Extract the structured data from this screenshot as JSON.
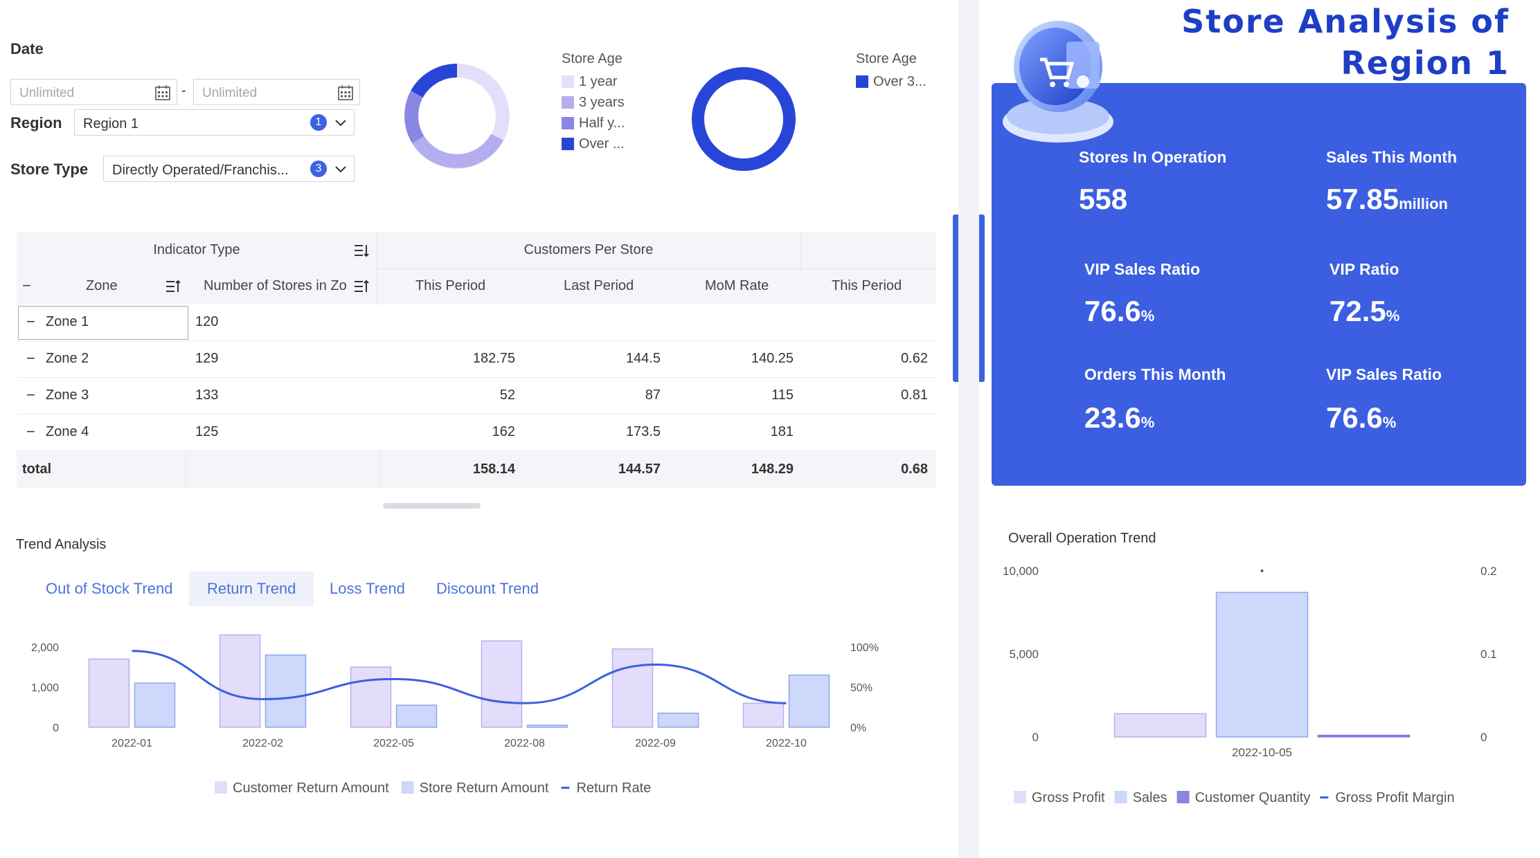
{
  "filters": {
    "date_label": "Date",
    "date_start_placeholder": "Unlimited",
    "date_end_placeholder": "Unlimited",
    "date_separator": "-",
    "region_label": "Region",
    "region_value": "Region 1",
    "region_count": "1",
    "store_type_label": "Store Type",
    "store_type_value": "Directly Operated/Franchis...",
    "store_type_count": "3"
  },
  "store_age_donut_1": {
    "legend_title": "Store Age",
    "items": [
      {
        "label": "1 year",
        "color": "#e3dffb"
      },
      {
        "label": "3 years",
        "color": "#b4aef0"
      },
      {
        "label": "Half y...",
        "color": "#8a86e4"
      },
      {
        "label": "Over ...",
        "color": "#2746d8"
      }
    ]
  },
  "store_age_donut_2": {
    "legend_title": "Store Age",
    "items": [
      {
        "label": "Over 3...",
        "color": "#2746d8"
      }
    ]
  },
  "table": {
    "header_indicator": "Indicator Type",
    "header_group": "Customers Per Store",
    "col_zone": "Zone",
    "col_stores": "Number of Stores in Zo",
    "col_this_period": "This Period",
    "col_last_period": "Last Period",
    "col_mom": "MoM Rate",
    "col_this_period_2": "This Period",
    "collapse_symbol": "−",
    "rows": [
      {
        "zone": "Zone 1",
        "stores": "120",
        "this": "",
        "last": "",
        "mom": "",
        "this2": ""
      },
      {
        "zone": "Zone 2",
        "stores": "129",
        "this": "182.75",
        "last": "144.5",
        "mom": "140.25",
        "this2": "0.62"
      },
      {
        "zone": "Zone 3",
        "stores": "133",
        "this": "52",
        "last": "87",
        "mom": "115",
        "this2": "0.81"
      },
      {
        "zone": "Zone 4",
        "stores": "125",
        "this": "162",
        "last": "173.5",
        "mom": "181",
        "this2": ""
      }
    ],
    "total": {
      "label": "total",
      "this": "158.14",
      "last": "144.57",
      "mom": "148.29",
      "this2": "0.68"
    }
  },
  "trend": {
    "section_title": "Trend Analysis",
    "tabs": [
      "Out of Stock Trend",
      "Return Trend",
      "Loss Trend",
      "Discount Trend"
    ],
    "active_tab": "Return Trend"
  },
  "chart_data": [
    {
      "type": "bar",
      "categories": [
        "2022-01",
        "2022-02",
        "2022-05",
        "2022-08",
        "2022-09",
        "2022-10"
      ],
      "series": [
        {
          "name": "Customer Return Amount",
          "values": [
            1700,
            2300,
            1500,
            2150,
            1950,
            600
          ],
          "color": "#e3dcfb"
        },
        {
          "name": "Store Return Amount",
          "values": [
            1100,
            1800,
            550,
            50,
            350,
            1300
          ],
          "color": "#cdd8fa"
        },
        {
          "name": "Return Rate",
          "values": [
            0.95,
            0.35,
            0.6,
            0.3,
            0.78,
            0.3
          ],
          "type": "line",
          "axis": "right",
          "color": "#3b5fe0"
        }
      ],
      "y_ticks": [
        "2,000",
        "1,000",
        "0"
      ],
      "y2_ticks": [
        "100%",
        "50%",
        "0%"
      ],
      "ylim": [
        0,
        2000
      ],
      "y2lim": [
        0,
        1
      ],
      "legend_position": "bottom"
    },
    {
      "type": "bar",
      "title": "Overall Operation Trend",
      "categories": [
        "2022-10-05"
      ],
      "series": [
        {
          "name": "Gross Profit",
          "values": [
            1400
          ],
          "color": "#e3dcfb"
        },
        {
          "name": "Sales",
          "values": [
            8700
          ],
          "color": "#cdd8fa"
        },
        {
          "name": "Customer Quantity",
          "values": [
            100
          ],
          "color": "#8a86e4"
        },
        {
          "name": "Gross Profit Margin",
          "values": [
            0.2
          ],
          "type": "line",
          "axis": "right",
          "color": "#3b5fe0"
        }
      ],
      "y_ticks": [
        "10,000",
        "5,000",
        "0"
      ],
      "y2_ticks": [
        "0.2",
        "0.1",
        "0"
      ],
      "ylim": [
        0,
        10000
      ],
      "y2lim": [
        0,
        0.2
      ],
      "legend_position": "bottom"
    }
  ],
  "right_panel": {
    "title_line1": "Store Analysis of",
    "title_line2": "Region 1",
    "kpis": [
      {
        "label": "Stores In Operation",
        "value": "558",
        "unit": ""
      },
      {
        "label": "Sales This Month",
        "value": "57.85",
        "unit": "million"
      },
      {
        "label": "VIP Sales Ratio",
        "value": "76.6",
        "unit": "%"
      },
      {
        "label": "VIP Ratio",
        "value": "72.5",
        "unit": "%"
      },
      {
        "label": "Orders This Month",
        "value": "23.6",
        "unit": "%"
      },
      {
        "label": "VIP Sales Ratio",
        "value": "76.6",
        "unit": "%"
      }
    ]
  },
  "toolbar": {
    "icons": [
      "link-icon",
      "settings-icon",
      "chart-icon",
      "comment-icon",
      "collapse-icon"
    ]
  }
}
